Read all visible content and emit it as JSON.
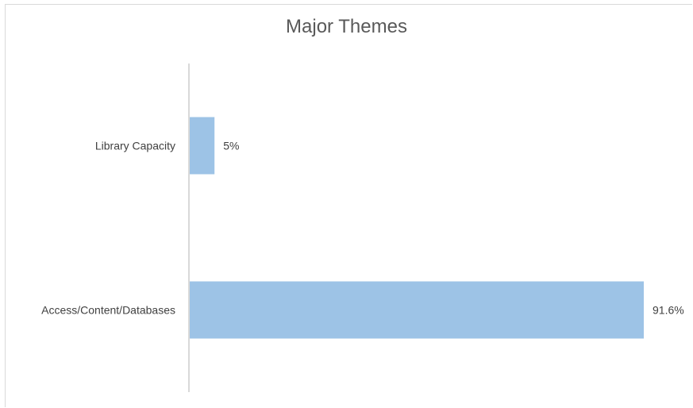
{
  "chart_data": {
    "type": "bar",
    "orientation": "horizontal",
    "title": "Major Themes",
    "categories": [
      "Library Capacity",
      "Access/Content/Databases"
    ],
    "values": [
      5,
      91.6
    ],
    "data_labels": [
      "5%",
      "91.6%"
    ],
    "xlabel": "",
    "ylabel": "",
    "xlim": [
      0,
      100
    ],
    "grid": false,
    "legend": "none",
    "bar_color": "#9dc3e6",
    "axis_color": "#d9d9d9"
  }
}
